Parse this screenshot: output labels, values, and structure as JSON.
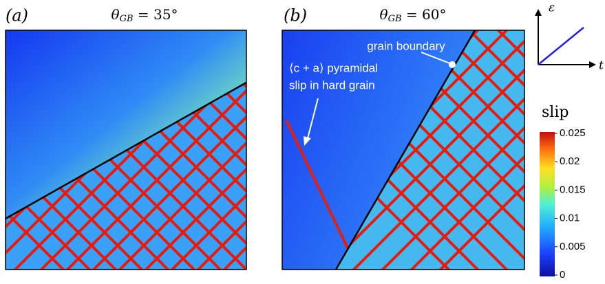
{
  "panels": [
    {
      "label": "(a)",
      "title": {
        "symbol": "θ",
        "subscript": "GB",
        "rest": " = 35°"
      }
    },
    {
      "label": "(b)",
      "title": {
        "symbol": "θ",
        "subscript": "GB",
        "rest": " = 60°"
      },
      "annotations": [
        "grain boundary",
        "⟨c + a⟩ pyramidal",
        "slip in hard grain"
      ]
    }
  ],
  "inset": {
    "y_label": "ε",
    "x_label": "t"
  },
  "colorbar": {
    "label": "slip",
    "range": [
      0,
      0.025
    ],
    "ticks": [
      0,
      0.005,
      0.01,
      0.015,
      0.02,
      0.025
    ]
  }
}
